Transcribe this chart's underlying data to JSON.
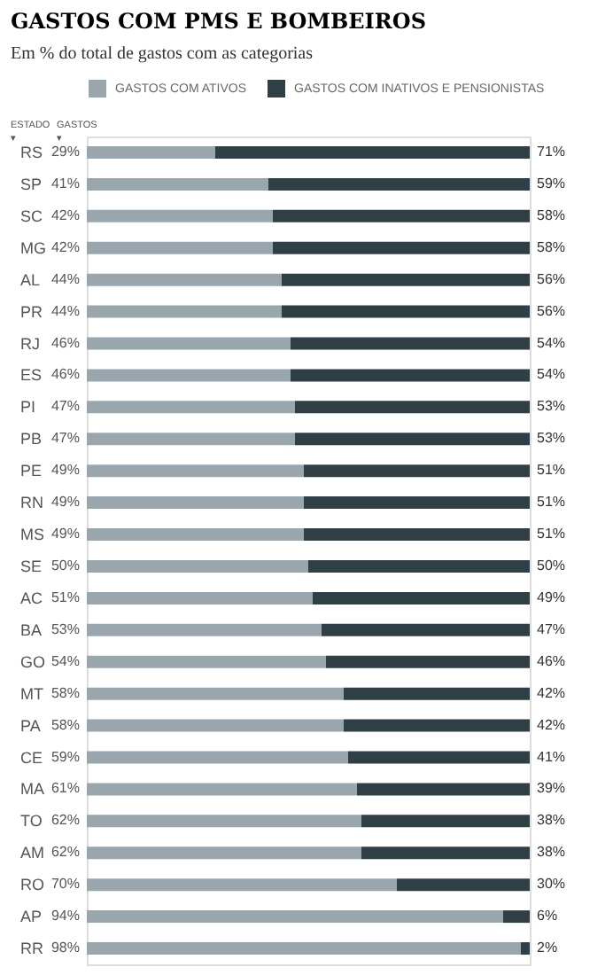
{
  "chart_data": {
    "type": "bar",
    "orientation": "horizontal",
    "stacked": true,
    "title": "GASTOS COM PMS E BOMBEIROS",
    "subtitle": "Em % do total de gastos com as categorias",
    "categories": [
      "RS",
      "SP",
      "SC",
      "MG",
      "AL",
      "PR",
      "RJ",
      "ES",
      "PI",
      "PB",
      "PE",
      "RN",
      "MS",
      "SE",
      "AC",
      "BA",
      "GO",
      "MT",
      "PA",
      "CE",
      "MA",
      "TO",
      "AM",
      "RO",
      "AP",
      "RR"
    ],
    "series": [
      {
        "name": "GASTOS COM ATIVOS",
        "color": "#9aa6ae",
        "values": [
          29,
          41,
          42,
          42,
          44,
          44,
          46,
          46,
          47,
          47,
          49,
          49,
          49,
          50,
          51,
          53,
          54,
          58,
          58,
          59,
          61,
          62,
          62,
          70,
          94,
          98
        ],
        "value_labels": [
          "29%",
          "41%",
          "42%",
          "42%",
          "44%",
          "44%",
          "46%",
          "46%",
          "47%",
          "47%",
          "49%",
          "49%",
          "49%",
          "50%",
          "51%",
          "53%",
          "54%",
          "58%",
          "58%",
          "59%",
          "61%",
          "62%",
          "62%",
          "70%",
          "94%",
          "98%"
        ]
      },
      {
        "name": "GASTOS COM INATIVOS E PENSIONISTAS",
        "color": "#2f3f45",
        "values": [
          71,
          59,
          58,
          58,
          56,
          56,
          54,
          54,
          53,
          53,
          51,
          51,
          51,
          50,
          49,
          47,
          46,
          42,
          42,
          41,
          39,
          38,
          38,
          30,
          6,
          2
        ],
        "value_labels": [
          "71%",
          "59%",
          "58%",
          "58%",
          "56%",
          "56%",
          "54%",
          "54%",
          "53%",
          "53%",
          "51%",
          "51%",
          "51%",
          "50%",
          "49%",
          "47%",
          "46%",
          "42%",
          "42%",
          "41%",
          "39%",
          "38%",
          "38%",
          "30%",
          "6%",
          "2%"
        ]
      }
    ],
    "xlim": [
      0,
      100
    ],
    "legend": "top",
    "tick_labels": "y",
    "annotations": [
      "ESTADO ▾",
      "GASTOS ▾"
    ]
  }
}
